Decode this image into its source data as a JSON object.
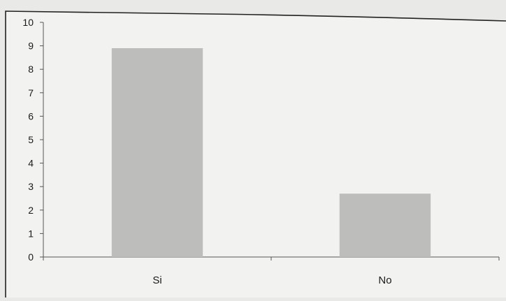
{
  "chart_data": {
    "type": "bar",
    "categories": [
      "Si",
      "No"
    ],
    "values": [
      8.9,
      2.7
    ],
    "ylim": [
      0,
      10
    ],
    "yticks": [
      "0",
      "1",
      "2",
      "3",
      "4",
      "5",
      "6",
      "7",
      "8",
      "9",
      "10"
    ],
    "grid": false,
    "legend": "none",
    "bar_color": "#bdbdbb",
    "background_color": "#f2f2f0"
  }
}
